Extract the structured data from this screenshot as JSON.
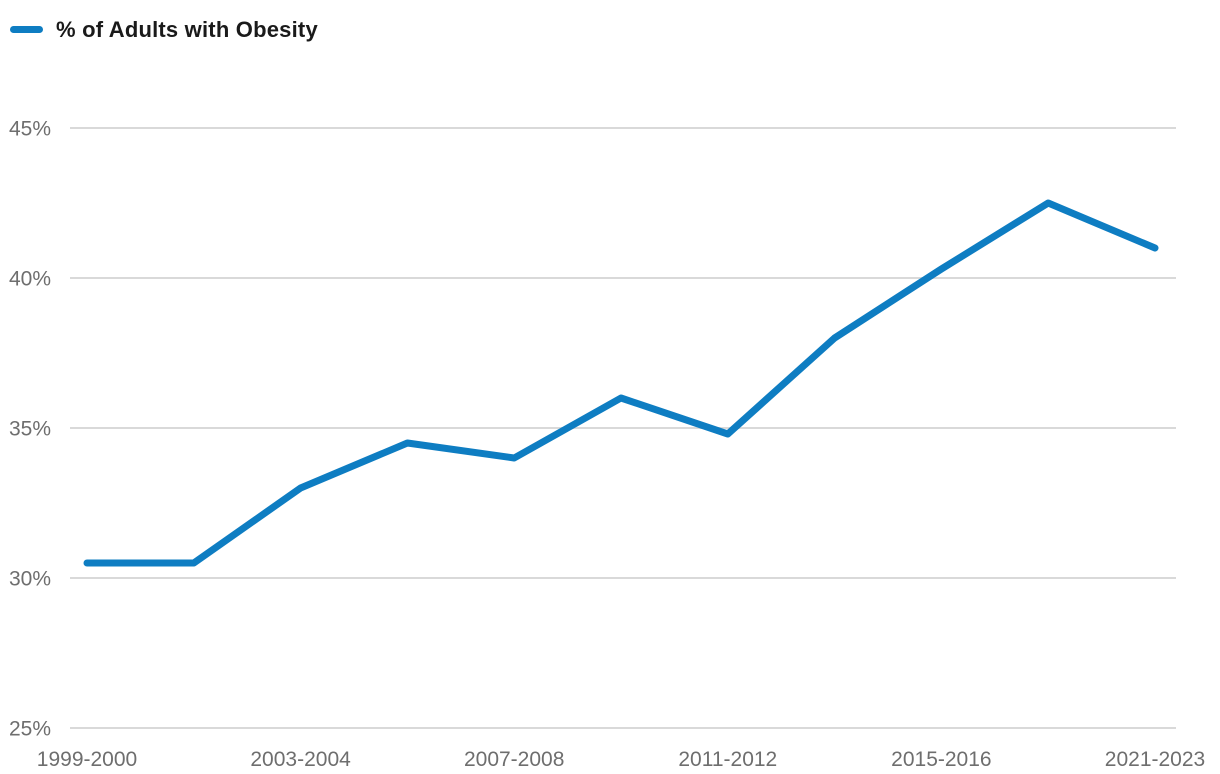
{
  "legend": {
    "series_label": "% of Adults with Obesity"
  },
  "colors": {
    "line": "#0e7dc2",
    "grid": "#d9d9d9",
    "axis_text": "#6e6e6e",
    "legend_text": "#1a1a1a",
    "background": "#ffffff"
  },
  "chart_data": {
    "type": "line",
    "title": "% of Adults with Obesity",
    "legend_position": "top-left",
    "grid": "horizontal gridlines only, light gray",
    "ylim": [
      25,
      47
    ],
    "y_ticks": [
      45,
      40,
      35,
      30,
      25
    ],
    "y_tick_labels": [
      "45%",
      "40%",
      "35%",
      "30%",
      "25%"
    ],
    "num_points": 11,
    "x_tick_labels": [
      {
        "index": 0,
        "label": "1999-2000"
      },
      {
        "index": 2,
        "label": "2003-2004"
      },
      {
        "index": 4,
        "label": "2007-2008"
      },
      {
        "index": 6,
        "label": "2011-2012"
      },
      {
        "index": 8,
        "label": "2015-2016"
      },
      {
        "index": 10,
        "label": "2021-2023"
      }
    ],
    "series": [
      {
        "name": "% of Adults with Obesity",
        "values": [
          30.5,
          30.5,
          33.0,
          34.5,
          34.0,
          36.0,
          34.8,
          38.0,
          40.3,
          42.5,
          41.0
        ]
      }
    ]
  }
}
